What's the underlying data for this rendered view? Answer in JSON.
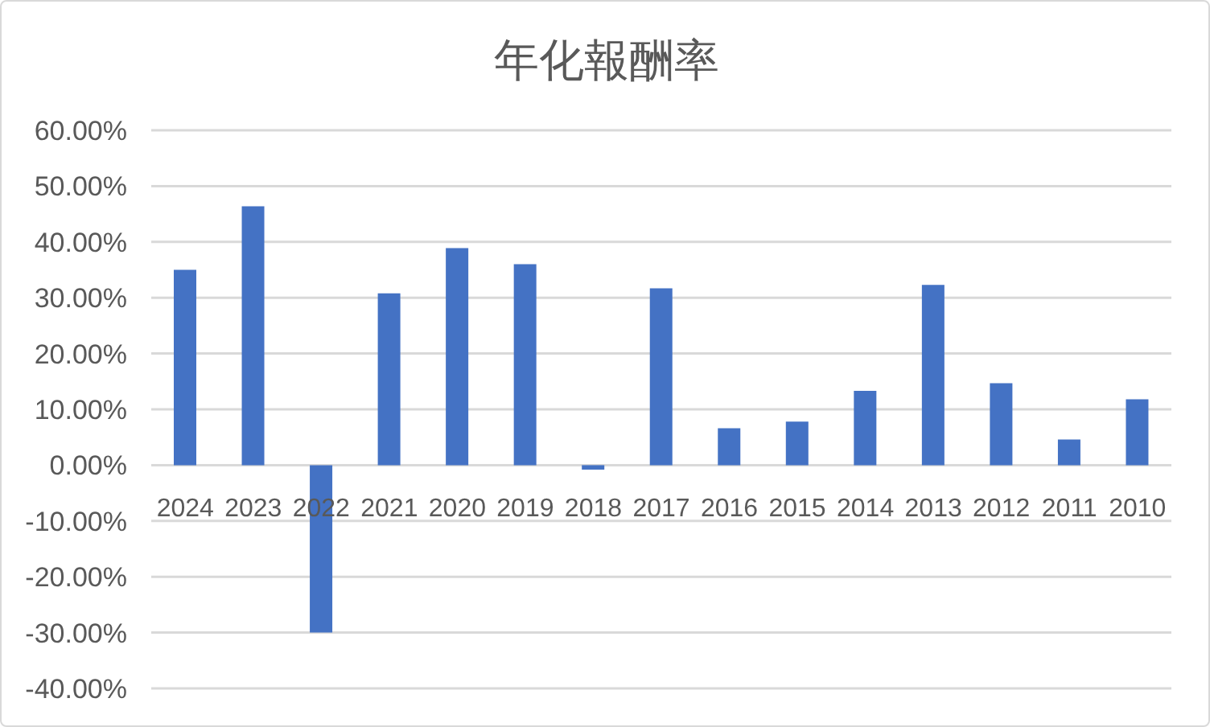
{
  "chart_data": {
    "type": "bar",
    "title": "年化報酬率",
    "categories": [
      "2024",
      "2023",
      "2022",
      "2021",
      "2020",
      "2019",
      "2018",
      "2017",
      "2016",
      "2015",
      "2014",
      "2013",
      "2012",
      "2011",
      "2010"
    ],
    "values": [
      35,
      46.4,
      -30,
      30.8,
      38.9,
      36,
      -0.8,
      31.7,
      6.6,
      7.8,
      13.3,
      32.3,
      14.7,
      4.6,
      11.8
    ],
    "color": "#4472c4",
    "ylim": [
      -40,
      60
    ],
    "yticks": [
      {
        "value": -40,
        "label": "-40.00%"
      },
      {
        "value": -30,
        "label": "-30.00%"
      },
      {
        "value": -20,
        "label": "-20.00%"
      },
      {
        "value": -10,
        "label": "-10.00%"
      },
      {
        "value": 0,
        "label": "0.00%"
      },
      {
        "value": 10,
        "label": "10.00%"
      },
      {
        "value": 20,
        "label": "20.00%"
      },
      {
        "value": 30,
        "label": "30.00%"
      },
      {
        "value": 40,
        "label": "40.00%"
      },
      {
        "value": 50,
        "label": "50.00%"
      },
      {
        "value": 60,
        "label": "60.00%"
      }
    ],
    "grid": "y"
  }
}
